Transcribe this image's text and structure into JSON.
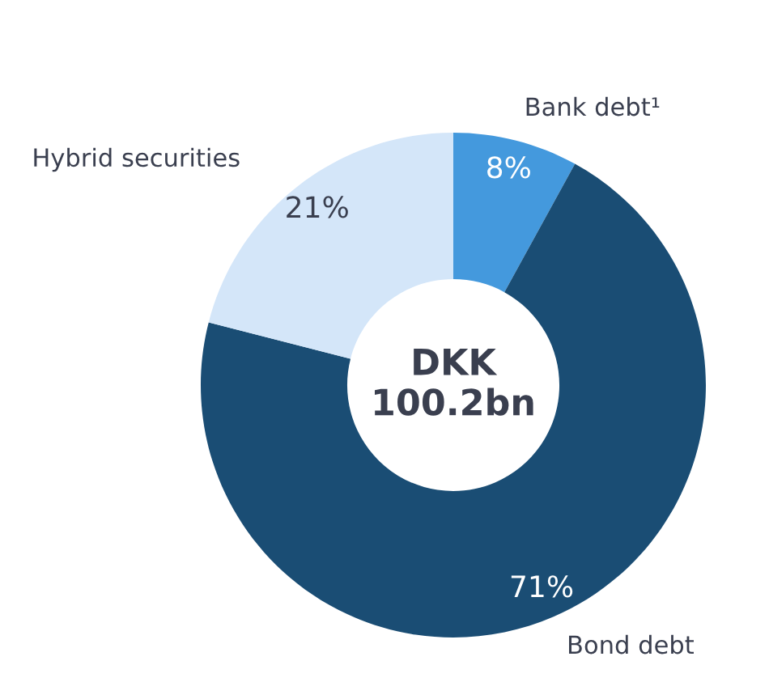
{
  "chart_data": {
    "type": "donut",
    "categories": [
      "Bank debt¹",
      "Bond debt",
      "Hybrid securities"
    ],
    "values": [
      8,
      71,
      21
    ],
    "colors": [
      "#4499dd",
      "#1a4d74",
      "#d4e6f9"
    ],
    "value_labels": [
      "8%",
      "71%",
      "21%"
    ],
    "annotations": [
      "DKK\n100.2bn"
    ]
  }
}
